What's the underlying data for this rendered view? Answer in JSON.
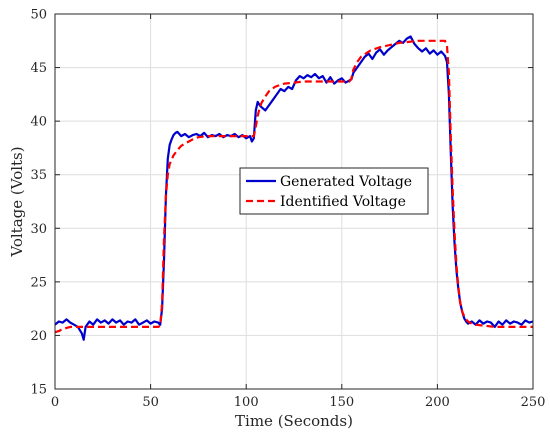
{
  "chart_data": {
    "type": "line",
    "title": "",
    "xlabel": "Time (Seconds)",
    "ylabel": "Voltage (Volts)",
    "xlim": [
      0,
      250
    ],
    "ylim": [
      15,
      50
    ],
    "xticks": [
      0,
      50,
      100,
      150,
      200,
      250
    ],
    "yticks": [
      15,
      20,
      25,
      30,
      35,
      40,
      45,
      50
    ],
    "xtick_labels": [
      "0",
      "50",
      "100",
      "150",
      "200",
      "250"
    ],
    "ytick_labels": [
      "15",
      "20",
      "25",
      "30",
      "35",
      "40",
      "45",
      "50"
    ],
    "grid": true,
    "legend_position": "center-right",
    "series": [
      {
        "name": "Generated Voltage",
        "color": "#0000cc",
        "style": "solid",
        "x": [
          0,
          2,
          4,
          6,
          8,
          10,
          12,
          14,
          15,
          16,
          18,
          20,
          22,
          24,
          26,
          28,
          30,
          32,
          34,
          36,
          38,
          40,
          42,
          44,
          46,
          48,
          50,
          52,
          54,
          55,
          56,
          57,
          58,
          59,
          60,
          61,
          62,
          63,
          64,
          65,
          66,
          68,
          70,
          72,
          74,
          76,
          78,
          80,
          82,
          84,
          86,
          88,
          90,
          92,
          94,
          96,
          98,
          100,
          102,
          103,
          104,
          105,
          106,
          107,
          108,
          110,
          112,
          114,
          116,
          118,
          120,
          122,
          124,
          126,
          128,
          130,
          132,
          134,
          136,
          138,
          140,
          142,
          144,
          146,
          148,
          150,
          152,
          154,
          155,
          156,
          158,
          160,
          162,
          164,
          166,
          168,
          170,
          172,
          174,
          176,
          178,
          180,
          182,
          184,
          186,
          188,
          190,
          192,
          194,
          196,
          198,
          200,
          202,
          204,
          205,
          206,
          207,
          208,
          209,
          210,
          211,
          212,
          213,
          214,
          215,
          216,
          218,
          220,
          222,
          224,
          226,
          228,
          230,
          232,
          234,
          236,
          238,
          240,
          242,
          244,
          246,
          248,
          250
        ],
        "y": [
          21.0,
          21.3,
          21.2,
          21.5,
          21.2,
          21.0,
          20.8,
          20.2,
          19.6,
          20.8,
          21.3,
          21.0,
          21.5,
          21.2,
          21.4,
          21.1,
          21.5,
          21.2,
          21.4,
          21.0,
          21.3,
          21.2,
          21.5,
          21.0,
          21.2,
          21.4,
          21.1,
          21.3,
          21.2,
          21.0,
          22.5,
          27.0,
          33.0,
          36.5,
          37.8,
          38.3,
          38.7,
          38.9,
          39.0,
          38.8,
          38.6,
          38.8,
          38.5,
          38.7,
          38.8,
          38.6,
          38.9,
          38.5,
          38.7,
          38.6,
          38.8,
          38.5,
          38.7,
          38.6,
          38.8,
          38.5,
          38.7,
          38.4,
          38.6,
          38.1,
          38.4,
          41.0,
          41.8,
          41.5,
          41.3,
          41.0,
          41.5,
          42.0,
          42.5,
          43.0,
          42.8,
          43.2,
          43.0,
          43.8,
          44.2,
          44.0,
          44.3,
          44.1,
          44.4,
          44.0,
          44.2,
          43.6,
          44.1,
          43.5,
          43.8,
          44.0,
          43.6,
          43.8,
          43.9,
          44.5,
          45.0,
          45.5,
          46.0,
          46.3,
          45.8,
          46.4,
          46.7,
          46.2,
          46.6,
          46.9,
          47.2,
          47.5,
          47.3,
          47.7,
          47.9,
          47.2,
          46.8,
          46.5,
          46.8,
          46.3,
          46.6,
          46.2,
          46.5,
          46.1,
          45.5,
          42.5,
          37.0,
          32.0,
          28.5,
          26.0,
          24.3,
          23.0,
          22.2,
          21.6,
          21.3,
          21.1,
          21.3,
          21.0,
          21.4,
          21.1,
          21.3,
          21.2,
          20.8,
          21.3,
          21.0,
          21.4,
          21.1,
          21.3,
          21.2,
          21.0,
          21.4,
          21.2,
          21.3
        ]
      },
      {
        "name": "Identified Voltage",
        "color": "#ff0000",
        "style": "dashed",
        "x": [
          0,
          2,
          4,
          6,
          8,
          10,
          20,
          30,
          40,
          50,
          54,
          55,
          56,
          57,
          58,
          59,
          60,
          62,
          64,
          66,
          68,
          70,
          72,
          75,
          80,
          90,
          100,
          103,
          104,
          105,
          106,
          107,
          108,
          110,
          112,
          115,
          118,
          120,
          125,
          130,
          135,
          140,
          145,
          150,
          154,
          155,
          156,
          158,
          160,
          165,
          170,
          175,
          180,
          185,
          190,
          195,
          200,
          204,
          205,
          206,
          207,
          208,
          209,
          210,
          211,
          212,
          213,
          214,
          215,
          216,
          218,
          220,
          225,
          230,
          240,
          250
        ],
        "y": [
          20.3,
          20.4,
          20.6,
          20.7,
          20.8,
          20.8,
          20.8,
          20.8,
          20.8,
          20.8,
          20.8,
          20.9,
          23.0,
          29.0,
          33.0,
          35.0,
          36.0,
          36.8,
          37.3,
          37.7,
          37.9,
          38.1,
          38.3,
          38.5,
          38.6,
          38.6,
          38.6,
          38.6,
          38.6,
          39.5,
          40.5,
          41.2,
          41.7,
          42.3,
          42.8,
          43.2,
          43.4,
          43.5,
          43.6,
          43.7,
          43.7,
          43.7,
          43.7,
          43.7,
          43.7,
          44.0,
          44.8,
          45.5,
          46.0,
          46.6,
          46.9,
          47.1,
          47.3,
          47.4,
          47.5,
          47.5,
          47.5,
          47.5,
          47.0,
          44.5,
          38.5,
          33.5,
          29.5,
          26.5,
          24.5,
          23.0,
          22.2,
          21.8,
          21.5,
          21.3,
          21.1,
          21.0,
          20.9,
          20.8,
          20.8,
          20.8
        ]
      }
    ]
  }
}
